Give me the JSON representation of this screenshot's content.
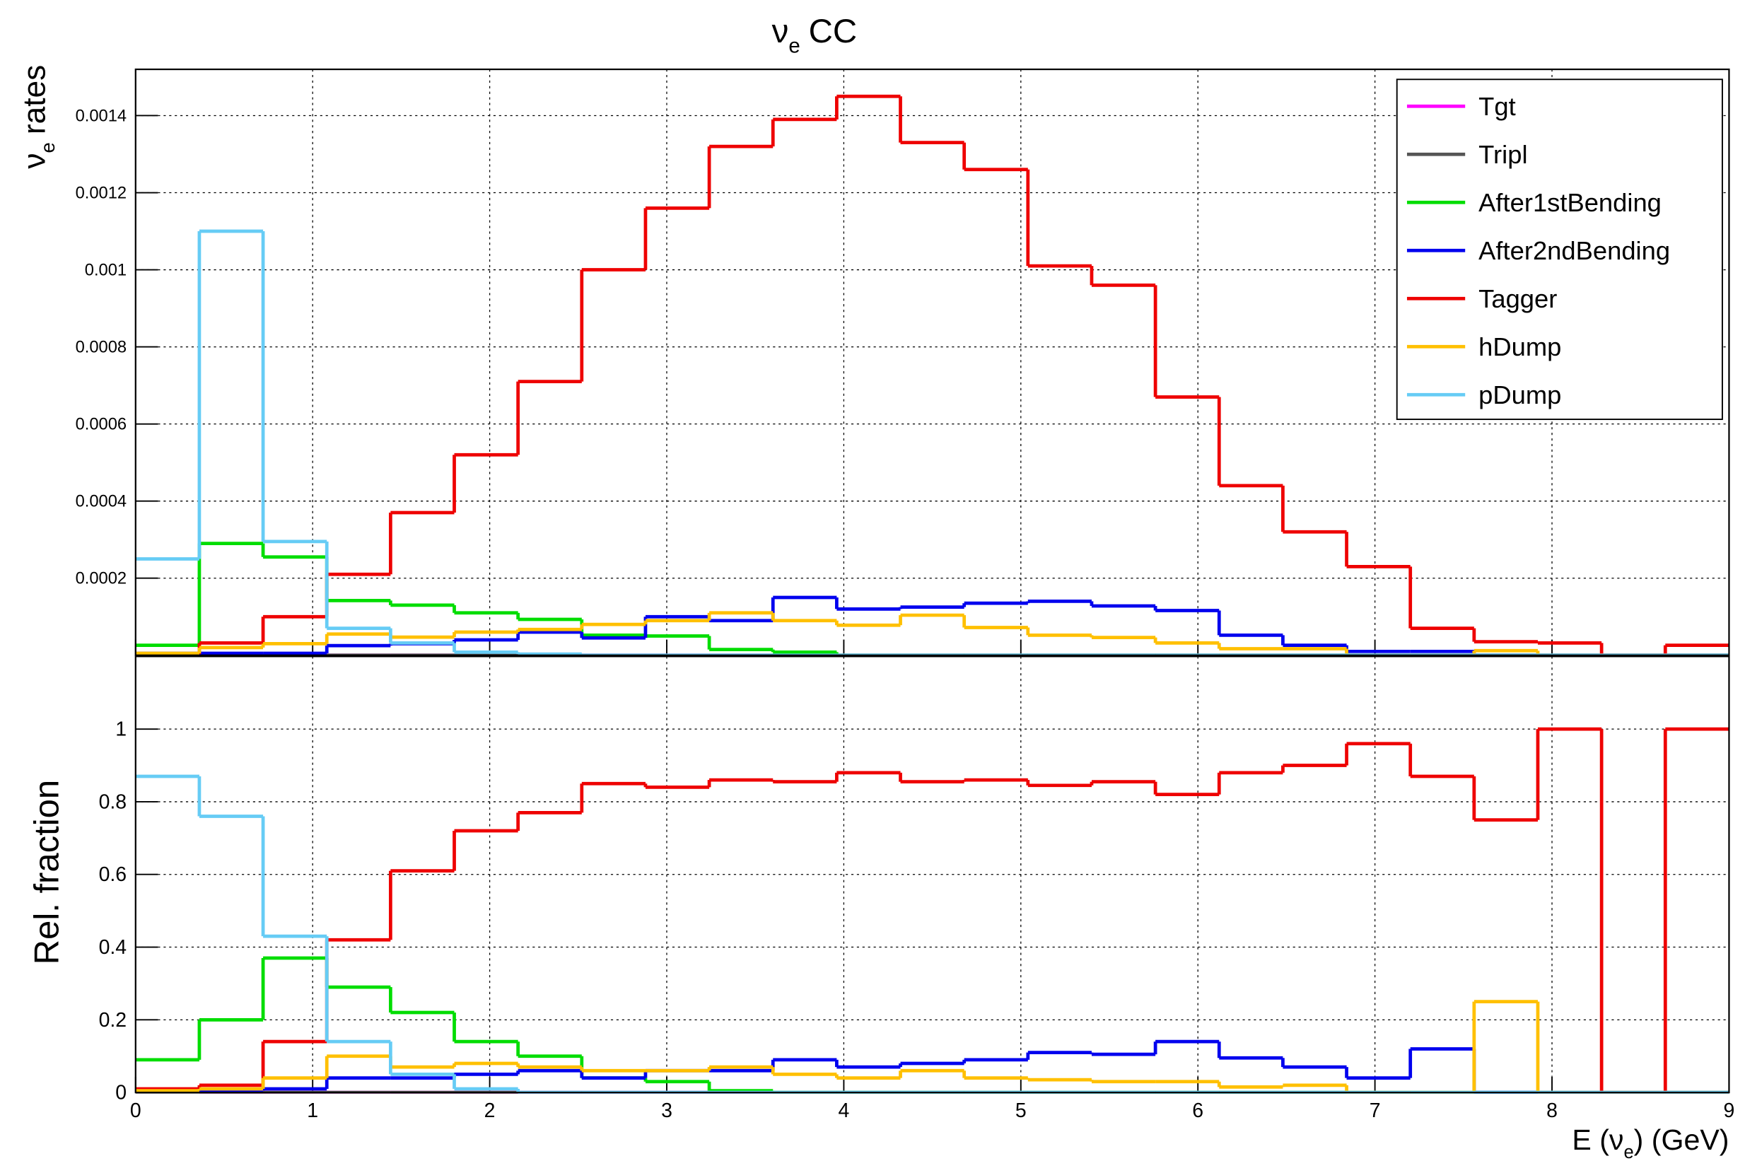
{
  "chart_data": [
    {
      "type": "histogram",
      "title": [
        "ν",
        "e",
        "CC"
      ],
      "ylabel": [
        "ν",
        "e",
        "rates"
      ],
      "bins": [
        0,
        0.36,
        0.72,
        1.08,
        1.44,
        1.8,
        2.16,
        2.52,
        2.88,
        3.24,
        3.6,
        3.96,
        4.32,
        4.68,
        5.04,
        5.4,
        5.76,
        6.12,
        6.48,
        6.84,
        7.2,
        7.56,
        7.92,
        8.28,
        8.64,
        9
      ],
      "xlim": [
        0,
        9
      ],
      "xticks": [
        0,
        1,
        2,
        3,
        4,
        5,
        6,
        7,
        8,
        9
      ],
      "ylim": [
        0,
        0.00152
      ],
      "yticks": [
        0.0002,
        0.0004,
        0.0006,
        0.0008,
        0.001,
        0.0012,
        0.0014
      ],
      "grid": true,
      "legend": "upper right",
      "series": [
        {
          "name": "Tgt",
          "color": "#ff00ff",
          "values": [
            0,
            0,
            0,
            0,
            0,
            0,
            0,
            0,
            0,
            0,
            0,
            0,
            0,
            0,
            0,
            0,
            0,
            0,
            0,
            0,
            0,
            0,
            0,
            0,
            0
          ]
        },
        {
          "name": "Tripl",
          "color": "#555555",
          "values": [
            0,
            0,
            0,
            0,
            0,
            0,
            0,
            0,
            0,
            0,
            0,
            0,
            0,
            0,
            0,
            0,
            0,
            0,
            0,
            0,
            0,
            0,
            0,
            0,
            0
          ]
        },
        {
          "name": "After1stBending",
          "color": "#00dd00",
          "values": [
            2.6e-05,
            0.00029,
            0.000255,
            0.000142,
            0.00013,
            0.00011,
            9.3e-05,
            5.2e-05,
            5e-05,
            1.5e-05,
            8e-06,
            0,
            0,
            0,
            0,
            0,
            0,
            0,
            0,
            0,
            0,
            0,
            0,
            0,
            0
          ]
        },
        {
          "name": "After2ndBending",
          "color": "#0000ee",
          "values": [
            5e-06,
            5e-06,
            5e-06,
            2.5e-05,
            3e-05,
            4e-05,
            6e-05,
            4.5e-05,
            0.0001,
            9e-05,
            0.00015,
            0.00012,
            0.000125,
            0.000135,
            0.00014,
            0.000128,
            0.000116,
            5.2e-05,
            2.6e-05,
            1e-05,
            1e-05,
            0,
            0,
            0,
            0
          ]
        },
        {
          "name": "Tagger",
          "color": "#ee0000",
          "values": [
            3e-06,
            3.2e-05,
            0.0001,
            0.00021,
            0.00037,
            0.00052,
            0.00071,
            0.001,
            0.00116,
            0.00132,
            0.00139,
            0.00145,
            0.00133,
            0.00126,
            0.00101,
            0.00096,
            0.00067,
            0.00044,
            0.00032,
            0.00023,
            7e-05,
            3.5e-05,
            3.2e-05,
            0,
            2.6e-05
          ]
        },
        {
          "name": "hDump",
          "color": "#ffc000",
          "values": [
            5e-06,
            2e-05,
            3e-05,
            5.5e-05,
            4.7e-05,
            6e-05,
            6.7e-05,
            8e-05,
            9e-05,
            0.00011,
            9e-05,
            7.8e-05,
            0.000104,
            7.2e-05,
            5.2e-05,
            4.6e-05,
            3.2e-05,
            1.7e-05,
            1.7e-05,
            0,
            0,
            1.2e-05,
            0,
            0,
            0
          ]
        },
        {
          "name": "pDump",
          "color": "#66ccf5",
          "values": [
            0.00025,
            0.0011,
            0.000295,
            7e-05,
            3.2e-05,
            8e-06,
            3e-06,
            0,
            0,
            0,
            0,
            0,
            0,
            0,
            0,
            0,
            0,
            0,
            0,
            0,
            0,
            0,
            0,
            0,
            0
          ]
        }
      ]
    },
    {
      "type": "histogram",
      "ylabel": [
        "Rel. fraction"
      ],
      "xlabel": [
        "E (ν",
        "e",
        ") (GeV)"
      ],
      "bins": [
        0,
        0.36,
        0.72,
        1.08,
        1.44,
        1.8,
        2.16,
        2.52,
        2.88,
        3.24,
        3.6,
        3.96,
        4.32,
        4.68,
        5.04,
        5.4,
        5.76,
        6.12,
        6.48,
        6.84,
        7.2,
        7.56,
        7.92,
        8.28,
        8.64,
        9
      ],
      "xlim": [
        0,
        9
      ],
      "xticks": [
        0,
        1,
        2,
        3,
        4,
        5,
        6,
        7,
        8,
        9
      ],
      "ylim": [
        0,
        1.2
      ],
      "yticks": [
        0,
        0.2,
        0.4,
        0.6,
        0.8,
        1
      ],
      "grid": true,
      "series": [
        {
          "color": "#ff00ff",
          "values": [
            0.005,
            0,
            0,
            0,
            0,
            0,
            0,
            0,
            0,
            0,
            0,
            0,
            0,
            0,
            0,
            0,
            0,
            0,
            0,
            0,
            0,
            0,
            0,
            0,
            0
          ]
        },
        {
          "color": "#555555",
          "values": [
            0,
            0,
            0,
            0,
            0,
            0,
            0,
            0,
            0,
            0,
            0,
            0,
            0,
            0,
            0,
            0,
            0,
            0,
            0,
            0,
            0,
            0,
            0,
            0,
            0
          ]
        },
        {
          "color": "#00dd00",
          "values": [
            0.09,
            0.2,
            0.37,
            0.29,
            0.22,
            0.14,
            0.1,
            0.04,
            0.03,
            0.005,
            0,
            0,
            0,
            0,
            0,
            0,
            0,
            0,
            0,
            0,
            0,
            0,
            0,
            0,
            0
          ]
        },
        {
          "color": "#0000ee",
          "values": [
            0.005,
            0.005,
            0.01,
            0.04,
            0.04,
            0.05,
            0.06,
            0.04,
            0.06,
            0.06,
            0.09,
            0.07,
            0.08,
            0.09,
            0.11,
            0.105,
            0.14,
            0.095,
            0.07,
            0.04,
            0.12,
            0,
            0,
            0,
            0
          ]
        },
        {
          "color": "#ee0000",
          "values": [
            0.01,
            0.02,
            0.14,
            0.42,
            0.61,
            0.72,
            0.77,
            0.85,
            0.84,
            0.86,
            0.855,
            0.88,
            0.855,
            0.86,
            0.845,
            0.855,
            0.82,
            0.88,
            0.9,
            0.96,
            0.87,
            0.75,
            1,
            0,
            1
          ]
        },
        {
          "color": "#ffc000",
          "values": [
            0.005,
            0.01,
            0.04,
            0.1,
            0.07,
            0.08,
            0.07,
            0.06,
            0.06,
            0.07,
            0.05,
            0.04,
            0.06,
            0.04,
            0.035,
            0.03,
            0.03,
            0.015,
            0.02,
            0,
            0,
            0.25,
            0,
            0,
            0
          ]
        },
        {
          "color": "#66ccf5",
          "values": [
            0.87,
            0.76,
            0.43,
            0.14,
            0.05,
            0.01,
            0,
            0,
            0,
            0,
            0,
            0,
            0,
            0,
            0,
            0,
            0,
            0,
            0,
            0,
            0,
            0,
            0,
            0,
            0
          ]
        }
      ]
    }
  ]
}
